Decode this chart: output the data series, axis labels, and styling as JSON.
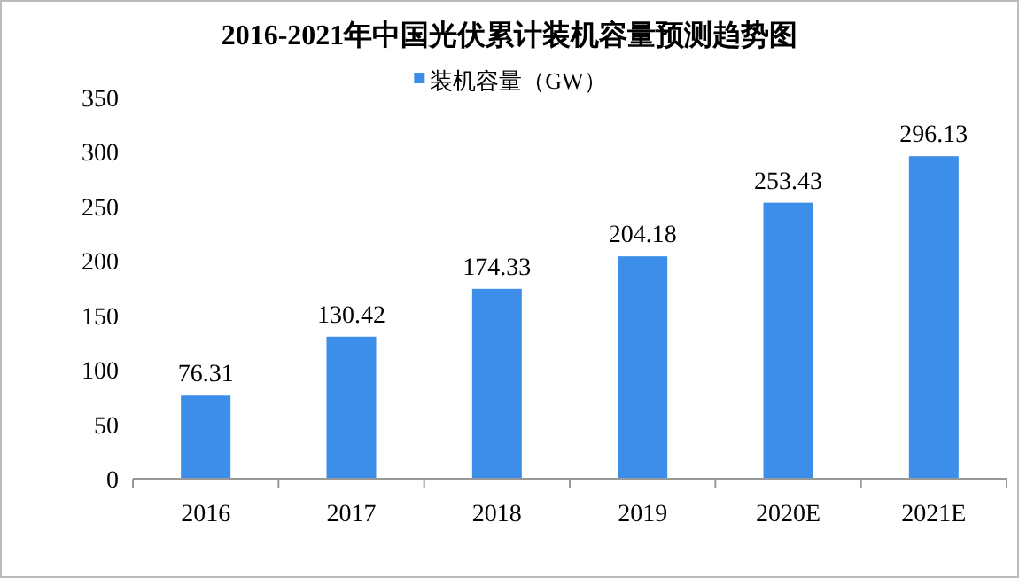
{
  "chart_data": {
    "type": "bar",
    "title": "2016-2021年中国光伏累计装机容量预测趋势图",
    "categories": [
      "2016",
      "2017",
      "2018",
      "2019",
      "2020E",
      "2021E"
    ],
    "series": [
      {
        "name": "装机容量（GW）",
        "color": "#3d8ee8",
        "values": [
          76.31,
          130.42,
          174.33,
          204.18,
          253.43,
          296.13
        ]
      }
    ],
    "ylim": [
      0,
      350
    ],
    "yticks": [
      0,
      50,
      100,
      150,
      200,
      250,
      300,
      350
    ],
    "data_labels": true,
    "legend": "top",
    "grid": false
  }
}
